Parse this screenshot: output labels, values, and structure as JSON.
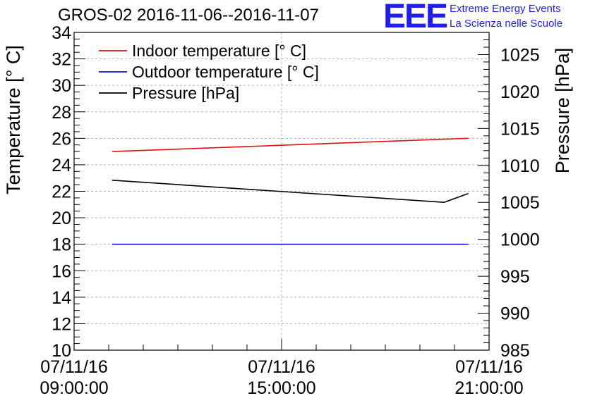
{
  "title": "GROS-02 2016-11-06--2016-11-07",
  "logo": {
    "mark": "EEE",
    "line1": "Extreme Energy Events",
    "line2": "La Scienza nelle Scuole",
    "color": "#1f1fe6"
  },
  "chart_data": {
    "type": "line",
    "ylabel": "Temperature [° C]",
    "y2label": "Pressure [hPa]",
    "x_ticks": [
      {
        "date": "07/11/16",
        "time": "09:00:00",
        "hour": 9
      },
      {
        "date": "07/11/16",
        "time": "15:00:00",
        "hour": 15
      },
      {
        "date": "07/11/16",
        "time": "21:00:00",
        "hour": 21
      }
    ],
    "xlim_hours": [
      9,
      21
    ],
    "ylim": [
      10,
      34
    ],
    "y_ticks": [
      "10",
      "12",
      "14",
      "16",
      "18",
      "20",
      "22",
      "24",
      "26",
      "28",
      "30",
      "32",
      "34"
    ],
    "y2lim": [
      985,
      1028
    ],
    "y2_ticks": [
      "985",
      "990",
      "995",
      "1000",
      "1005",
      "1010",
      "1015",
      "1020",
      "1025"
    ],
    "grid": true,
    "legend_position": "top-left",
    "series": [
      {
        "name": "Indoor temperature [° C]",
        "color": "#e01010",
        "axis": "left",
        "x": [
          10.1,
          20.4
        ],
        "y": [
          25.0,
          26.0
        ]
      },
      {
        "name": "Outdoor temperature [° C]",
        "color": "#1010e0",
        "axis": "left",
        "x": [
          10.1,
          20.4
        ],
        "y": [
          18.0,
          18.0
        ]
      },
      {
        "name": "Pressure [hPa]",
        "color": "#000000",
        "axis": "right",
        "x": [
          10.1,
          19.7,
          20.4
        ],
        "y": [
          1008.0,
          1005.0,
          1006.2
        ]
      }
    ]
  }
}
